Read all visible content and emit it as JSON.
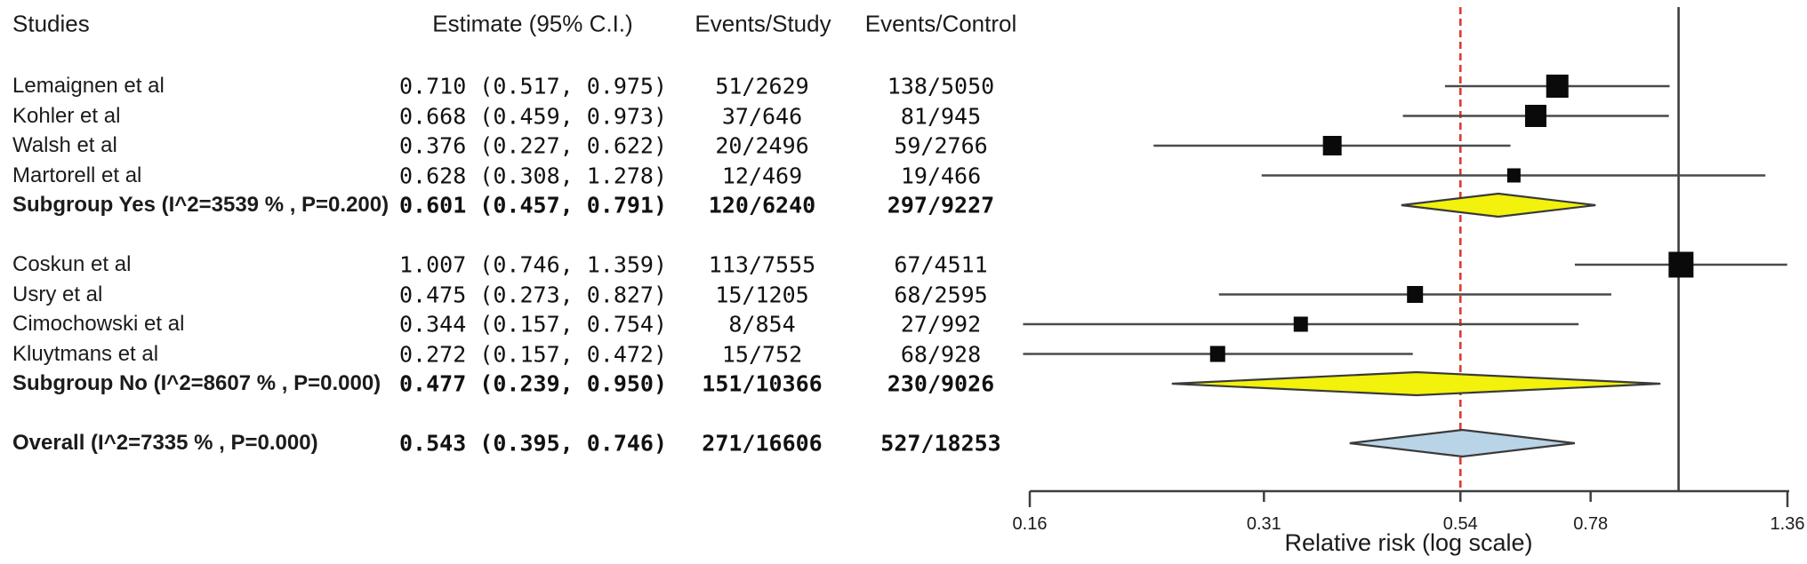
{
  "columns": {
    "studies": "Studies",
    "estimate": "Estimate (95% C.I.)",
    "events_study": "Events/Study",
    "events_control": "Events/Control"
  },
  "chart_data": {
    "type": "forest",
    "x_scale": "log",
    "xlabel": "Relative risk (log scale)",
    "x_ticks": [
      0.16,
      0.31,
      0.54,
      0.78,
      1.36
    ],
    "x_tick_labels": [
      "0.16",
      "0.31",
      "0.54",
      "0.78",
      "1.36"
    ],
    "xlim": [
      0.16,
      1.36
    ],
    "reference_line_solid": 1.0,
    "reference_line_dashed": 0.54,
    "rows": [
      {
        "kind": "study",
        "label": "Lemaignen et al",
        "est": 0.71,
        "lo": 0.517,
        "hi": 0.975,
        "estimate_text": "0.710 (0.517, 0.975)",
        "events_study": "51/2629",
        "events_control": "138/5050",
        "square": 25
      },
      {
        "kind": "study",
        "label": "Kohler et al",
        "est": 0.668,
        "lo": 0.459,
        "hi": 0.973,
        "estimate_text": "0.668 (0.459, 0.973)",
        "events_study": "37/646",
        "events_control": "81/945",
        "square": 24
      },
      {
        "kind": "study",
        "label": "Walsh et al",
        "est": 0.376,
        "lo": 0.227,
        "hi": 0.622,
        "estimate_text": "0.376 (0.227, 0.622)",
        "events_study": "20/2496",
        "events_control": "59/2766",
        "square": 21
      },
      {
        "kind": "study",
        "label": "Martorell et al",
        "est": 0.628,
        "lo": 0.308,
        "hi": 1.278,
        "estimate_text": "0.628 (0.308, 1.278)",
        "events_study": "12/469",
        "events_control": "19/466",
        "square": 15
      },
      {
        "kind": "subgroup",
        "label": "Subgroup Yes (I^2=3539 % , P=0.200)",
        "est": 0.601,
        "lo": 0.457,
        "hi": 0.791,
        "estimate_text": "0.601 (0.457, 0.791)",
        "events_study": "120/6240",
        "events_control": "297/9227",
        "diamond": "yellow"
      },
      {
        "kind": "study",
        "label": "Coskun et al",
        "est": 1.007,
        "lo": 0.746,
        "hi": 1.359,
        "estimate_text": "1.007 (0.746, 1.359)",
        "events_study": "113/7555",
        "events_control": "67/4511",
        "square": 28,
        "gap_before": true
      },
      {
        "kind": "study",
        "label": "Usry et al",
        "est": 0.475,
        "lo": 0.273,
        "hi": 0.827,
        "estimate_text": "0.475 (0.273, 0.827)",
        "events_study": "15/1205",
        "events_control": "68/2595",
        "square": 18
      },
      {
        "kind": "study",
        "label": "Cimochowski et al",
        "est": 0.344,
        "lo": 0.157,
        "hi": 0.754,
        "estimate_text": "0.344 (0.157, 0.754)",
        "events_study": "8/854",
        "events_control": "27/992",
        "square": 16
      },
      {
        "kind": "study",
        "label": "Kluytmans et al",
        "est": 0.272,
        "lo": 0.157,
        "hi": 0.472,
        "estimate_text": "0.272 (0.157, 0.472)",
        "events_study": "15/752",
        "events_control": "68/928",
        "square": 17
      },
      {
        "kind": "subgroup",
        "label": "Subgroup No (I^2=8607 % , P=0.000)",
        "est": 0.477,
        "lo": 0.239,
        "hi": 0.95,
        "estimate_text": "0.477 (0.239, 0.950)",
        "events_study": "151/10366",
        "events_control": "230/9026",
        "diamond": "yellow"
      },
      {
        "kind": "overall",
        "label": "Overall (I^2=7335 % , P=0.000)",
        "est": 0.543,
        "lo": 0.395,
        "hi": 0.746,
        "estimate_text": "0.543 (0.395, 0.746)",
        "events_study": "271/16606",
        "events_control": "527/18253",
        "diamond": "blue",
        "gap_before": true
      }
    ]
  },
  "colors": {
    "diamond_yellow": "#f2f20c",
    "diamond_blue": "#b9d4e7",
    "diamond_outline": "#3a3a3a",
    "square": "#0a0a0a",
    "ci_line": "#4a4a4a",
    "ref_line": "#3f3f3f",
    "dashed_line": "#e0392e",
    "axis": "#3f3f3f",
    "text": "#1b1b1b"
  }
}
